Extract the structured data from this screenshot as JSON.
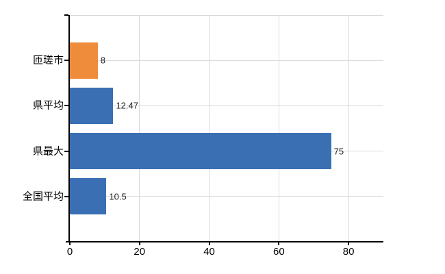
{
  "chart_data": {
    "type": "bar",
    "orientation": "horizontal",
    "title": "",
    "xlabel": "",
    "ylabel": "",
    "categories": [
      "匝瑳市",
      "県平均",
      "県最大",
      "全国平均"
    ],
    "values": [
      8,
      12.47,
      75,
      10.5
    ],
    "value_labels": [
      "8",
      "12.47",
      "75",
      "10.5"
    ],
    "bar_colors": [
      "#ef8c3b",
      "#3a6fb4",
      "#3a6fb4",
      "#3a6fb4"
    ],
    "xlim": [
      0,
      90
    ],
    "x_tick_values": [
      0,
      20,
      40,
      60,
      80
    ],
    "x_tick_labels": [
      "0",
      "20",
      "40",
      "60",
      "80"
    ],
    "grid": true,
    "legend_position": "none"
  },
  "colors": {
    "highlight_bar": "#ef8c3b",
    "default_bar": "#3a6fb4",
    "gridline": "#d9d9d9",
    "axis_line": "#000000",
    "tick_label_text": "#000000",
    "value_label_text": "#222222",
    "background": "#ffffff"
  }
}
